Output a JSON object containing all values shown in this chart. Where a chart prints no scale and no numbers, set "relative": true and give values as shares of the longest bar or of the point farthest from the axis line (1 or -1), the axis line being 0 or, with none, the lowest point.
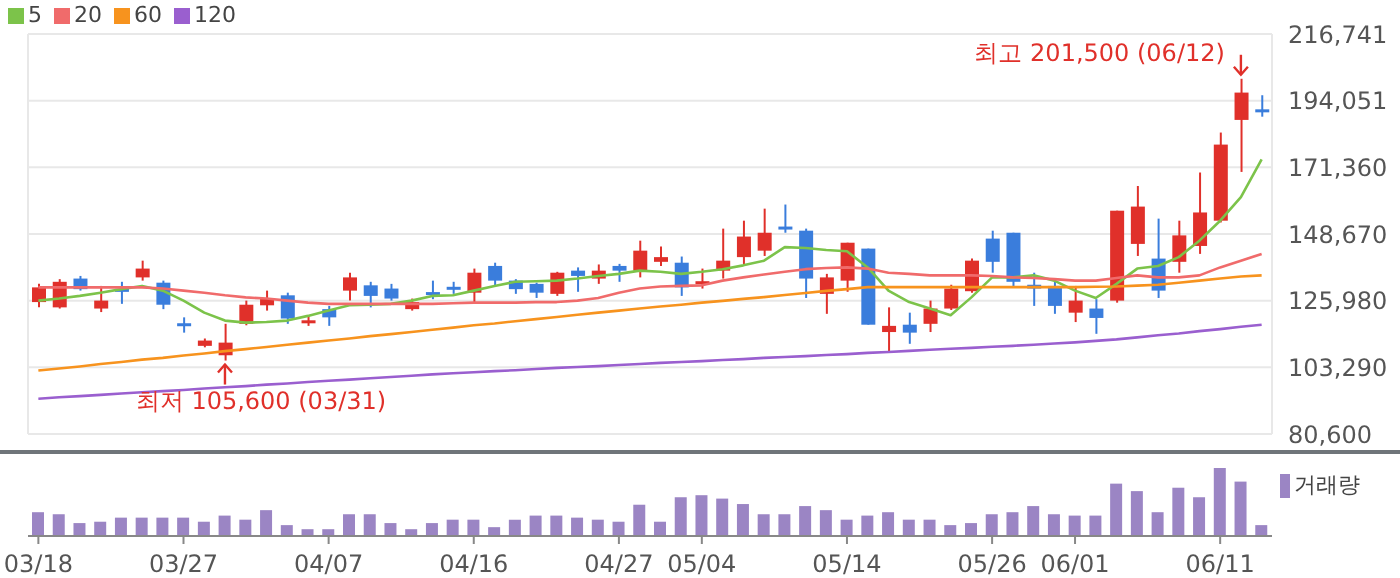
{
  "chart_data": [
    {
      "type": "candlestick",
      "categories": [
        null,
        null,
        null,
        null,
        null,
        null,
        null,
        null,
        null,
        null,
        null,
        null,
        null,
        null,
        null,
        null,
        null,
        null,
        null,
        null,
        null,
        null,
        null,
        null,
        null,
        null,
        null,
        null,
        null,
        null,
        null,
        null,
        null,
        null,
        null,
        null,
        null,
        null,
        null,
        null,
        null,
        null,
        null,
        null,
        null,
        null,
        null,
        null,
        null,
        null,
        null,
        null,
        null,
        null,
        null,
        null,
        null,
        null,
        null,
        null
      ],
      "ohlc": [
        [
          125500,
          131700,
          123700,
          130500
        ],
        [
          123700,
          133300,
          123300,
          132400
        ],
        [
          133500,
          134400,
          129400,
          129900
        ],
        [
          123300,
          131000,
          122100,
          126000
        ],
        [
          130000,
          132400,
          124900,
          129800
        ],
        [
          133900,
          139600,
          132800,
          136900
        ],
        [
          132100,
          132800,
          123100,
          124600
        ],
        [
          118300,
          120300,
          115100,
          118000
        ],
        [
          110600,
          113100,
          110100,
          112400
        ],
        [
          107400,
          118100,
          105600,
          111700
        ],
        [
          118100,
          126000,
          117600,
          124600
        ],
        [
          124400,
          129400,
          122600,
          126700
        ],
        [
          127800,
          128700,
          118100,
          119900
        ],
        [
          119000,
          121000,
          117400,
          119300
        ],
        [
          123100,
          124200,
          117400,
          120300
        ],
        [
          129400,
          135500,
          126000,
          133900
        ],
        [
          131200,
          132400,
          123700,
          127600
        ],
        [
          130100,
          131700,
          126000,
          126700
        ],
        [
          123100,
          126700,
          122600,
          125500
        ],
        [
          128900,
          132800,
          126500,
          128600
        ],
        [
          130700,
          132400,
          128300,
          130400
        ],
        [
          128700,
          136900,
          124900,
          135500
        ],
        [
          137800,
          138900,
          131200,
          132800
        ],
        [
          132800,
          133300,
          128300,
          129900
        ],
        [
          131700,
          132100,
          126900,
          128700
        ],
        [
          128300,
          135800,
          127600,
          135500
        ],
        [
          136200,
          137300,
          129000,
          134400
        ],
        [
          133500,
          138300,
          131700,
          136200
        ],
        [
          137800,
          138500,
          132400,
          136200
        ],
        [
          136200,
          146400,
          133900,
          143000
        ],
        [
          139200,
          144400,
          137800,
          140800
        ],
        [
          138900,
          141000,
          127600,
          130500
        ],
        [
          132400,
          136900,
          130100,
          132600
        ],
        [
          136200,
          150500,
          133500,
          139600
        ],
        [
          140800,
          153200,
          137800,
          147800
        ],
        [
          143000,
          157300,
          141200,
          149100
        ],
        [
          151200,
          158700,
          149100,
          150900
        ],
        [
          149800,
          150500,
          126900,
          133500
        ],
        [
          128300,
          135100,
          121500,
          133900
        ],
        [
          132800,
          145700,
          129000,
          145700
        ],
        [
          143700,
          143700,
          117800,
          117800
        ],
        [
          115300,
          123700,
          108300,
          117400
        ],
        [
          117800,
          121900,
          111300,
          115100
        ],
        [
          118100,
          126000,
          115300,
          123300
        ],
        [
          123300,
          131400,
          122800,
          130100
        ],
        [
          129200,
          140300,
          128700,
          139600
        ],
        [
          147100,
          149800,
          135500,
          139200
        ],
        [
          149100,
          149100,
          130500,
          132400
        ],
        [
          131400,
          135500,
          124200,
          130100
        ],
        [
          131000,
          132800,
          121500,
          124200
        ],
        [
          121900,
          131000,
          118700,
          126000
        ],
        [
          123300,
          126500,
          114700,
          120100
        ],
        [
          126000,
          156600,
          125300,
          156600
        ],
        [
          145300,
          165000,
          141200,
          158000
        ],
        [
          140300,
          153900,
          126900,
          129400
        ],
        [
          139200,
          153200,
          135500,
          148200
        ],
        [
          144600,
          169600,
          141900,
          156000
        ],
        [
          153200,
          183200,
          152600,
          179100
        ],
        [
          187500,
          201500,
          169800,
          196800
        ],
        [
          191100,
          195900,
          188600,
          190900
        ]
      ],
      "colors": [
        "#e0302a",
        "#e0302a",
        "#3a7ddc",
        "#e0302a",
        "#3a7ddc",
        "#e0302a",
        "#3a7ddc",
        "#3a7ddc",
        "#e0302a",
        "#e0302a",
        "#e0302a",
        "#e0302a",
        "#3a7ddc",
        "#e0302a",
        "#3a7ddc",
        "#e0302a",
        "#3a7ddc",
        "#3a7ddc",
        "#e0302a",
        "#3a7ddc",
        "#3a7ddc",
        "#e0302a",
        "#3a7ddc",
        "#3a7ddc",
        "#3a7ddc",
        "#e0302a",
        "#3a7ddc",
        "#e0302a",
        "#3a7ddc",
        "#e0302a",
        "#e0302a",
        "#3a7ddc",
        "#e0302a",
        "#e0302a",
        "#e0302a",
        "#e0302a",
        "#3a7ddc",
        "#3a7ddc",
        "#e0302a",
        "#e0302a",
        "#3a7ddc",
        "#e0302a",
        "#3a7ddc",
        "#e0302a",
        "#e0302a",
        "#e0302a",
        "#3a7ddc",
        "#3a7ddc",
        "#3a7ddc",
        "#3a7ddc",
        "#e0302a",
        "#3a7ddc",
        "#e0302a",
        "#e0302a",
        "#3a7ddc",
        "#e0302a",
        "#e0302a",
        "#e0302a",
        "#e0302a",
        "#3a7ddc"
      ],
      "series": [
        {
          "name": "5",
          "type": "line",
          "color": "#7cc34a",
          "values": [
            126000,
            126700,
            127600,
            128700,
            129900,
            131000,
            129400,
            126000,
            121900,
            119200,
            118500,
            118700,
            119200,
            120800,
            122600,
            124400,
            124600,
            124900,
            126000,
            127600,
            127800,
            129400,
            131000,
            132400,
            132600,
            132800,
            133500,
            134400,
            135100,
            136200,
            135800,
            135100,
            135800,
            136700,
            138000,
            139600,
            144200,
            143900,
            143200,
            142800,
            137300,
            129400,
            125500,
            123300,
            121000,
            127100,
            133900,
            133900,
            134600,
            132800,
            129400,
            126900,
            131700,
            136900,
            137800,
            140800,
            146400,
            153200,
            161200,
            174100
          ]
        },
        {
          "name": "20",
          "type": "line",
          "color": "#f06b6b",
          "values": [
            130500,
            130500,
            130500,
            130500,
            130500,
            130500,
            130100,
            129400,
            128700,
            127800,
            127100,
            126700,
            126000,
            125300,
            124900,
            124900,
            124900,
            124900,
            124900,
            124900,
            125100,
            125300,
            125300,
            125300,
            125500,
            125500,
            126000,
            126900,
            128700,
            130100,
            130800,
            131000,
            131200,
            132800,
            133900,
            134900,
            135800,
            136700,
            137100,
            137300,
            136900,
            135500,
            135100,
            134600,
            134600,
            134600,
            134400,
            133900,
            133700,
            133300,
            132800,
            132800,
            133700,
            134600,
            133900,
            133900,
            134600,
            137300,
            139600,
            141900
          ]
        },
        {
          "name": "60",
          "type": "line",
          "color": "#f7931e",
          "values": [
            102200,
            102900,
            103600,
            104400,
            105100,
            105900,
            106500,
            107300,
            108000,
            108800,
            109500,
            110200,
            111000,
            111700,
            112400,
            113100,
            113900,
            114600,
            115300,
            116100,
            116800,
            117600,
            118200,
            119000,
            119700,
            120400,
            121200,
            121900,
            122600,
            123300,
            124000,
            124600,
            125300,
            125900,
            126600,
            127200,
            127900,
            128600,
            129300,
            129900,
            130600,
            130600,
            130600,
            130600,
            130600,
            130600,
            130600,
            130600,
            130600,
            130600,
            130600,
            130700,
            130800,
            131100,
            131400,
            132100,
            132800,
            133500,
            134200,
            134600
          ]
        },
        {
          "name": "120",
          "type": "line",
          "color": "#9a5fcf",
          "values": [
            92600,
            93100,
            93500,
            93900,
            94400,
            94800,
            95200,
            95600,
            96100,
            96500,
            96900,
            97400,
            97800,
            98300,
            98700,
            99100,
            99600,
            100000,
            100400,
            100900,
            101300,
            101600,
            102000,
            102300,
            102700,
            103100,
            103400,
            103700,
            104100,
            104400,
            104800,
            105100,
            105400,
            105800,
            106100,
            106500,
            106800,
            107100,
            107500,
            107800,
            108200,
            108500,
            108900,
            109300,
            109600,
            109900,
            110300,
            110600,
            111000,
            111400,
            111800,
            112300,
            112800,
            113500,
            114200,
            114800,
            115600,
            116300,
            117100,
            117800
          ]
        }
      ],
      "ylim": [
        80600,
        216741
      ],
      "yticks": [
        {
          "value": 80600,
          "label": "80,600"
        },
        {
          "value": 103290,
          "label": "103,290"
        },
        {
          "value": 125980,
          "label": "125,980"
        },
        {
          "value": 148670,
          "label": "148,670"
        },
        {
          "value": 171360,
          "label": "171,360"
        },
        {
          "value": 194051,
          "label": "194,051"
        },
        {
          "value": 216741,
          "label": "216,741"
        }
      ],
      "grid": true,
      "legend": "top left",
      "tick_labels": "y",
      "annotations": [
        "최고 201,500 (06/12)",
        "최저 105,600 (03/31)"
      ]
    },
    {
      "type": "bar",
      "relative": true,
      "legend": "top right",
      "tick_labels": "x",
      "categories": [
        "03/18",
        null,
        null,
        null,
        null,
        null,
        null,
        "03/27",
        null,
        null,
        null,
        null,
        null,
        null,
        "04/07",
        null,
        null,
        null,
        null,
        null,
        null,
        "04/16",
        null,
        null,
        null,
        null,
        null,
        null,
        "04/27",
        null,
        null,
        null,
        "05/04",
        null,
        null,
        null,
        null,
        null,
        null,
        "05/14",
        null,
        null,
        null,
        null,
        null,
        null,
        "05/26",
        null,
        null,
        null,
        "06/01",
        null,
        null,
        null,
        null,
        null,
        null,
        "06/11",
        null,
        null
      ],
      "series": [
        {
          "name": "거래량",
          "color": "#9b85c4",
          "values": [
            0.35,
            0.32,
            0.19,
            0.21,
            0.27,
            0.27,
            0.27,
            0.27,
            0.21,
            0.3,
            0.24,
            0.38,
            0.16,
            0.1,
            0.1,
            0.32,
            0.32,
            0.19,
            0.1,
            0.19,
            0.24,
            0.24,
            0.13,
            0.24,
            0.3,
            0.3,
            0.27,
            0.24,
            0.21,
            0.46,
            0.21,
            0.57,
            0.6,
            0.55,
            0.47,
            0.32,
            0.32,
            0.44,
            0.38,
            0.24,
            0.3,
            0.35,
            0.24,
            0.24,
            0.16,
            0.19,
            0.32,
            0.35,
            0.44,
            0.32,
            0.3,
            0.3,
            0.77,
            0.66,
            0.35,
            0.71,
            0.57,
            1,
            0.8,
            0.16
          ]
        }
      ]
    }
  ]
}
